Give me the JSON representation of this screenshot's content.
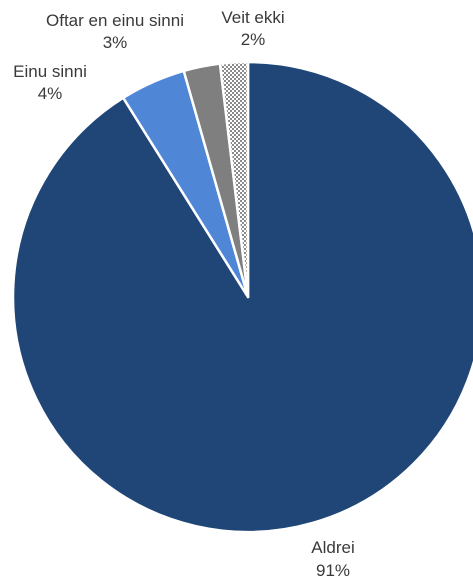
{
  "chart_data": {
    "type": "pie",
    "start_angle_deg": 0,
    "direction": "clockwise",
    "slices": [
      {
        "label": "Aldrei",
        "value": 91,
        "display": "91%",
        "color": "#1f4677",
        "pattern": "none"
      },
      {
        "label": "Einu sinni",
        "value": 4.5,
        "display": "4%",
        "color": "#4f86d6",
        "pattern": "none"
      },
      {
        "label": "Oftar en einu sinni",
        "value": 2.5,
        "display": "3%",
        "color": "#7f7f7f",
        "pattern": "none"
      },
      {
        "label": "Veit ekki",
        "value": 1.9,
        "display": "2%",
        "color": "#ffffff",
        "pattern": "checker"
      }
    ],
    "legend": "none",
    "data_labels": "outside"
  }
}
